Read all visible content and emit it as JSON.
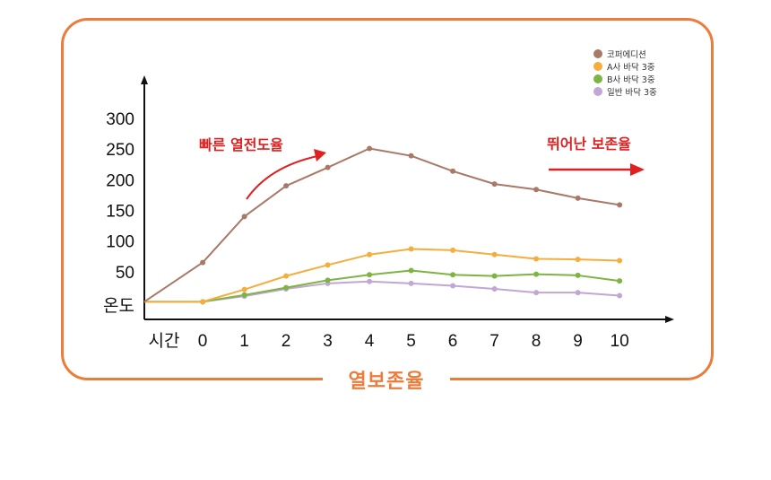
{
  "frame": {
    "title": "열보존율",
    "border_color": "#ec7c3b"
  },
  "annotations": {
    "fast_transfer": "빠른 열전도율",
    "great_retention": "뛰어난 보존율",
    "arrow_color": "#e02020"
  },
  "chart_data": {
    "type": "line",
    "title": "",
    "xlabel": "시간",
    "ylabel": "온도",
    "x": [
      0,
      1,
      2,
      3,
      4,
      5,
      6,
      7,
      8,
      9,
      10
    ],
    "xlim": [
      -1.4,
      10.6
    ],
    "ylim": [
      0,
      300
    ],
    "yticks": [
      50,
      100,
      150,
      200,
      250,
      300
    ],
    "grid": false,
    "legend_position": "top-right",
    "series": [
      {
        "name": "코퍼에디션",
        "color": "#a97968",
        "values": [
          65,
          140,
          190,
          220,
          251,
          239,
          214,
          193,
          184,
          170,
          159
        ],
        "origin_value": 1
      },
      {
        "name": "A사 바닥 3중",
        "color": "#f5ae3c",
        "values": [
          1,
          21,
          43,
          61,
          78,
          87,
          85,
          78,
          71,
          70,
          68
        ],
        "origin_value": 1
      },
      {
        "name": "B사 바닥 3중",
        "color": "#7db443",
        "values": [
          1,
          12,
          24,
          36,
          45,
          52,
          45,
          43,
          46,
          44,
          35
        ],
        "origin_value": 1
      },
      {
        "name": "일반 바닥 3중",
        "color": "#c2a6d3",
        "values": [
          1,
          10,
          22,
          31,
          34,
          31,
          27,
          22,
          16,
          16,
          11
        ],
        "origin_value": 1
      }
    ]
  }
}
